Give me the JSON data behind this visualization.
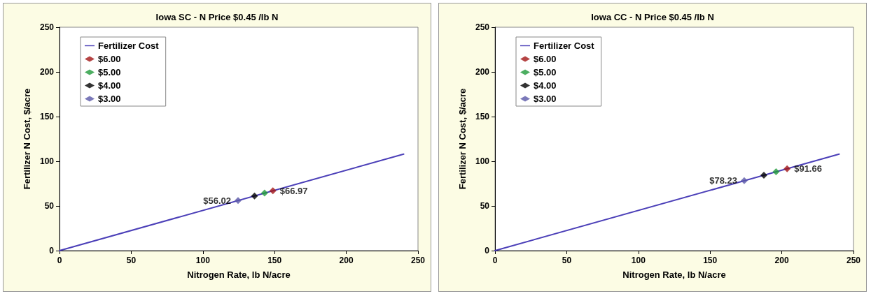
{
  "chart_data": [
    {
      "type": "scatter",
      "title": "Iowa SC - N Price $0.45 /lb N",
      "xlabel": "Nitrogen Rate, lb N/acre",
      "ylabel": "Fertilizer N Cost, $/acre",
      "xlim": [
        0,
        250
      ],
      "xticks": [
        0,
        50,
        100,
        150,
        200,
        250
      ],
      "ylim": [
        0,
        250
      ],
      "yticks": [
        0,
        50,
        100,
        150,
        200,
        250
      ],
      "grid": false,
      "legend": "top left",
      "marker": "diamond",
      "series": [
        {
          "name": "Fertilizer Cost",
          "type": "line",
          "marker": "none",
          "color": "#4b3fb8",
          "x": [
            0,
            240
          ],
          "values": [
            0,
            108
          ]
        },
        {
          "name": "$6.00",
          "color": "#a31515",
          "x": [
            148.8
          ],
          "values": [
            66.97
          ],
          "value_labels": [
            "$66.97"
          ]
        },
        {
          "name": "$5.00",
          "color": "#1f9a3a",
          "x": [
            143
          ],
          "values": [
            64.4
          ]
        },
        {
          "name": "$4.00",
          "color": "#000000",
          "x": [
            136
          ],
          "values": [
            61.2
          ]
        },
        {
          "name": "$3.00",
          "color": "#5a58a8",
          "x": [
            124.5
          ],
          "values": [
            56.02
          ],
          "value_labels": [
            "$56.02"
          ]
        }
      ]
    },
    {
      "type": "scatter",
      "title": "Iowa CC - N Price $0.45 /lb N",
      "xlabel": "Nitrogen Rate, lb N/acre",
      "ylabel": "Fertilizer N Cost, $/acre",
      "xlim": [
        0,
        250
      ],
      "xticks": [
        0,
        50,
        100,
        150,
        200,
        250
      ],
      "ylim": [
        0,
        250
      ],
      "yticks": [
        0,
        50,
        100,
        150,
        200,
        250
      ],
      "grid": false,
      "legend": "top left",
      "marker": "diamond",
      "series": [
        {
          "name": "Fertilizer Cost",
          "type": "line",
          "marker": "none",
          "color": "#4b3fb8",
          "x": [
            0,
            240
          ],
          "values": [
            0,
            108
          ]
        },
        {
          "name": "$6.00",
          "color": "#a31515",
          "x": [
            203.7
          ],
          "values": [
            91.66
          ],
          "value_labels": [
            "$91.66"
          ]
        },
        {
          "name": "$5.00",
          "color": "#1f9a3a",
          "x": [
            196
          ],
          "values": [
            88.2
          ]
        },
        {
          "name": "$4.00",
          "color": "#000000",
          "x": [
            187.5
          ],
          "values": [
            84.4
          ]
        },
        {
          "name": "$3.00",
          "color": "#5a58a8",
          "x": [
            173.8
          ],
          "values": [
            78.23
          ],
          "value_labels": [
            "$78.23"
          ]
        }
      ]
    }
  ]
}
